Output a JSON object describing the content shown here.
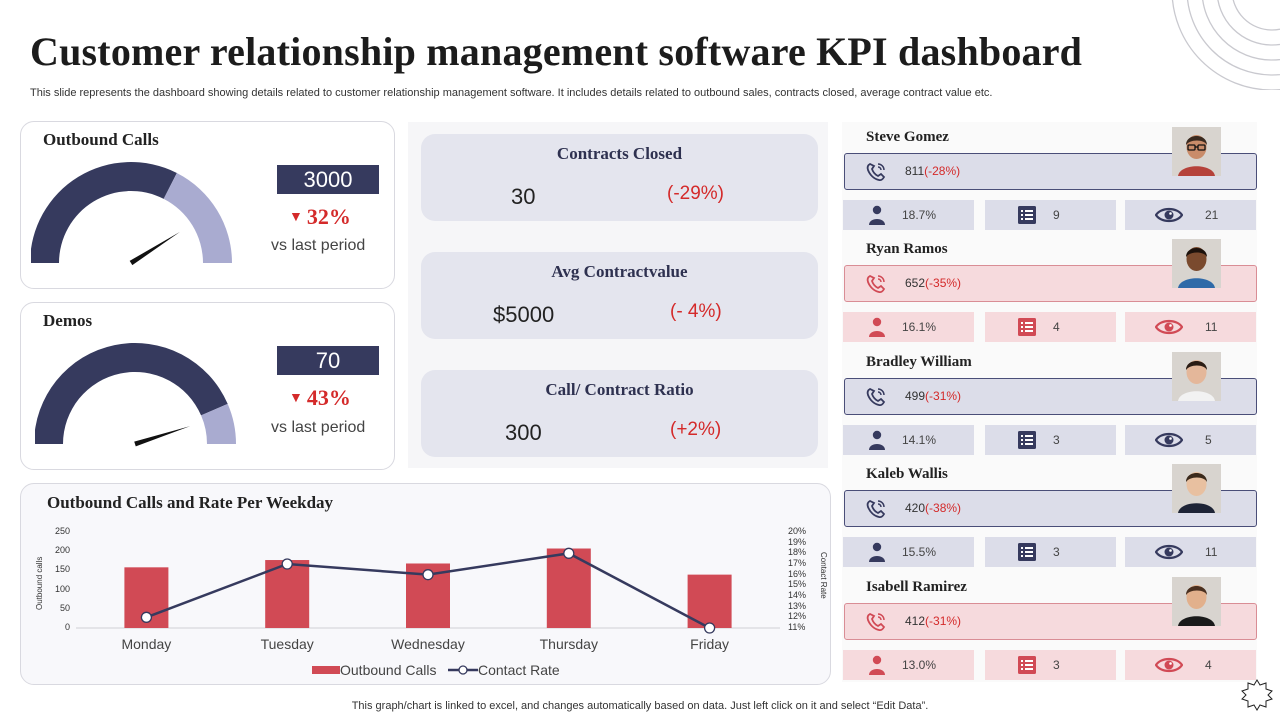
{
  "title": "Customer relationship management software KPI dashboard",
  "subtitle": "This slide represents the dashboard showing details related to customer relationship management software. It includes details related to outbound sales, contracts closed, average contract value etc.",
  "outbound_calls": {
    "title": "Outbound Calls",
    "value": "3000",
    "change": "32%",
    "vs": "vs last period",
    "gauge_fraction": 0.65,
    "needle_fraction": 0.82
  },
  "demos": {
    "title": "Demos",
    "value": "70",
    "change": "43%",
    "vs": "vs last period",
    "gauge_fraction": 0.87,
    "needle_fraction": 0.9
  },
  "contracts_closed": {
    "title": "Contracts Closed",
    "value": "30",
    "change": "(-29%)"
  },
  "avg_contract_value": {
    "title": "Avg Contractvalue",
    "value": "$5000",
    "change": "(- 4%)"
  },
  "call_contract_ratio": {
    "title": "Call/ Contract Ratio",
    "value": "300",
    "change": "(+2%)"
  },
  "people": [
    {
      "name": "Steve Gomez",
      "calls": "811",
      "calls_change": "(-28%)",
      "percent": "18.7%",
      "lists": "9",
      "views": "21",
      "theme": "blue"
    },
    {
      "name": "Ryan Ramos",
      "calls": "652",
      "calls_change": "(-35%)",
      "percent": "16.1%",
      "lists": "4",
      "views": "11",
      "theme": "pink"
    },
    {
      "name": "Bradley William",
      "calls": "499",
      "calls_change": "(-31%)",
      "percent": "14.1%",
      "lists": "3",
      "views": "5",
      "theme": "blue"
    },
    {
      "name": "Kaleb Wallis",
      "calls": "420",
      "calls_change": "(-38%)",
      "percent": "15.5%",
      "lists": "3",
      "views": "11",
      "theme": "blue"
    },
    {
      "name": "Isabell Ramirez",
      "calls": "412",
      "calls_change": "(-31%)",
      "percent": "13.0%",
      "lists": "3",
      "views": "4",
      "theme": "pink"
    }
  ],
  "chart_title": "Outbound Calls and Rate Per Weekday",
  "chart_data": {
    "type": "bar",
    "title": "Outbound Calls and Rate Per Weekday",
    "categories": [
      "Monday",
      "Tuesday",
      "Wednesday",
      "Thursday",
      "Friday"
    ],
    "series": [
      {
        "name": "Outbound Calls",
        "type": "bar",
        "axis": "left",
        "values": [
          158,
          177,
          168,
          207,
          139
        ]
      },
      {
        "name": "Contact Rate",
        "type": "line",
        "axis": "right",
        "values": [
          12.0,
          17.0,
          16.0,
          18.0,
          11.0
        ]
      }
    ],
    "ylabel": "Outbound calls",
    "ylim": [
      0,
      250
    ],
    "yticks": [
      "250",
      "200",
      "150",
      "100",
      "50",
      "0"
    ],
    "y2label": "Contact Rate",
    "y2lim": [
      11,
      20
    ],
    "y2ticks": [
      "20%",
      "19%",
      "18%",
      "17%",
      "16%",
      "15%",
      "14%",
      "13%",
      "12%",
      "11%"
    ],
    "legend": "bottom"
  },
  "footer": "This graph/chart is linked to excel,  and changes automatically based on data. Just left click on it and select “Edit Data”.",
  "colors": {
    "navy": "#363a5e",
    "lavender": "#a9abd0",
    "red": "#d14a55",
    "alert": "#d42a2a"
  }
}
